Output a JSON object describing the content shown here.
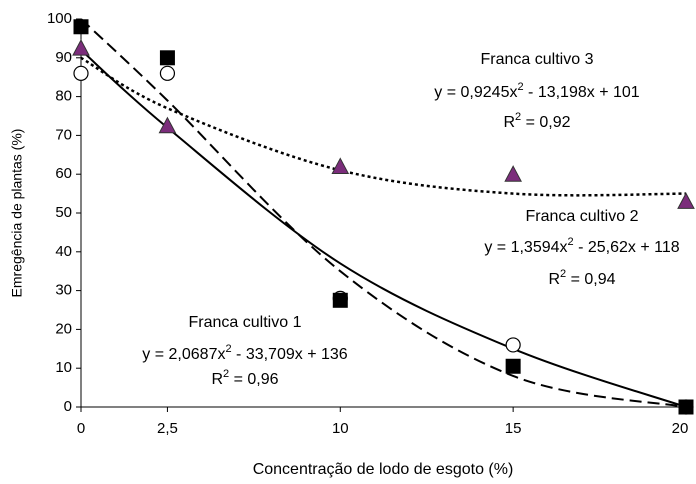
{
  "chart_data": {
    "type": "scatter",
    "x_label": "Concentração de lodo de esgoto (%)",
    "y_label": "Emregência de plantas (%)",
    "categories": [
      "0",
      "2,5",
      "10",
      "15",
      "20"
    ],
    "ylim": [
      0,
      100
    ],
    "yticks": [
      0,
      10,
      20,
      30,
      40,
      50,
      60,
      70,
      80,
      90,
      100
    ],
    "series": [
      {
        "name": "Franca cultivo 1",
        "marker": "circle",
        "color": "#ffffff",
        "values": [
          86,
          86,
          28,
          16,
          0
        ]
      },
      {
        "name": "Franca cultivo 2",
        "marker": "square",
        "color": "#000000",
        "values": [
          98,
          90,
          27.5,
          10.5,
          0
        ]
      },
      {
        "name": "Franca cultivo 3",
        "marker": "triangle",
        "color": "#7b2d7b",
        "values": [
          92.5,
          72.5,
          62,
          60,
          53
        ]
      }
    ],
    "trendlines": [
      {
        "dash": "solid",
        "values": [
          92,
          72,
          37,
          15,
          0
        ],
        "equation": {
          "before": "y = 2,0687x",
          "sup": "2",
          "after": " - 33,709x + 136"
        },
        "r2": {
          "base": "R",
          "sup": "2",
          "after": " = 0,96"
        }
      },
      {
        "dash": "dashed",
        "values": [
          100,
          79,
          35,
          8,
          0
        ],
        "equation": {
          "before": "y = 1,3594x",
          "sup": "2",
          "after": " - 25,62x + 118"
        },
        "r2": {
          "base": "R",
          "sup": "2",
          "after": " = 0,94"
        }
      },
      {
        "dash": "dotted",
        "values": [
          90,
          77,
          61,
          55,
          55
        ],
        "equation": {
          "before": "y = 0,9245x",
          "sup": "2",
          "after": " - 13,198x + 101"
        },
        "r2": {
          "base": "R",
          "sup": "2",
          "after": " = 0,92"
        }
      }
    ]
  }
}
